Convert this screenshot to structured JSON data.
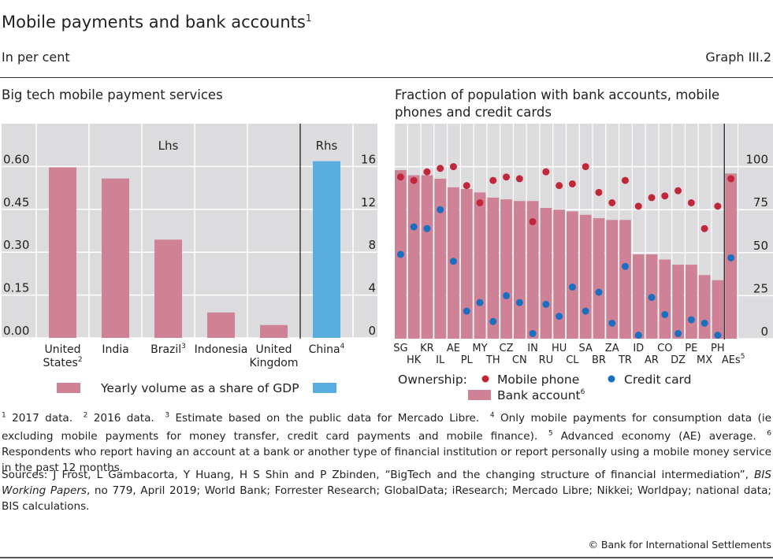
{
  "header": {
    "title": "Mobile payments and bank accounts",
    "title_sup": "1",
    "subtitle": "In per cent",
    "graph_id": "Graph III.2"
  },
  "colors": {
    "panel_bg": "#dcdcde",
    "pink": "#cf8196",
    "light_blue": "#5aade0",
    "red_dot": "#c0283a",
    "blue_dot": "#1a6fc0"
  },
  "chart_data": [
    {
      "type": "bar",
      "title": "Big tech mobile payment services",
      "axis_labels": {
        "left": "Lhs",
        "right": "Rhs"
      },
      "categories": [
        {
          "label": "United",
          "label2": "States",
          "sup": "2",
          "axis": "lhs"
        },
        {
          "label": "India",
          "label2": "",
          "sup": "",
          "axis": "lhs"
        },
        {
          "label": "Brazil",
          "label2": "",
          "sup": "3",
          "axis": "lhs"
        },
        {
          "label": "Indonesia",
          "label2": "",
          "sup": "",
          "axis": "lhs"
        },
        {
          "label": "United",
          "label2": "Kingdom",
          "sup": "",
          "axis": "lhs"
        },
        {
          "label": "China",
          "label2": "",
          "sup": "4",
          "axis": "rhs"
        }
      ],
      "values": [
        0.597,
        0.558,
        0.344,
        0.089,
        0.045,
        16.5
      ],
      "lhs_ticks": [
        "0.00",
        "0.15",
        "0.30",
        "0.45",
        "0.60"
      ],
      "rhs_ticks": [
        "0",
        "4",
        "8",
        "12",
        "16"
      ],
      "lhs_ylim": [
        0,
        0.75
      ],
      "rhs_ylim": [
        0,
        20
      ],
      "grid": true,
      "legend": {
        "label": "Yearly volume as a share of GDP",
        "position": "bottom"
      }
    },
    {
      "type": "bar+scatter",
      "title": "Fraction of population with bank accounts, mobile phones and credit cards",
      "categories": [
        "SG",
        "HK",
        "KR",
        "IL",
        "AE",
        "PL",
        "MY",
        "TH",
        "CZ",
        "CN",
        "IN",
        "RU",
        "HU",
        "CL",
        "SA",
        "BR",
        "ZA",
        "TR",
        "ID",
        "AR",
        "CO",
        "DZ",
        "PE",
        "MX",
        "PH",
        "AEs"
      ],
      "last_category_sup": "5",
      "series": [
        {
          "name": "Bank account",
          "type": "bar",
          "values": [
            98,
            95,
            95,
            93,
            88,
            87,
            85,
            82,
            81,
            80,
            80,
            76,
            75,
            74,
            72,
            70,
            69,
            69,
            49,
            49,
            46,
            43,
            43,
            37,
            34,
            96
          ]
        },
        {
          "name": "Mobile phone",
          "type": "scatter",
          "values": [
            94,
            92,
            97,
            99,
            100,
            89,
            79,
            92,
            94,
            93,
            68,
            97,
            89,
            90,
            100,
            85,
            79,
            92,
            77,
            82,
            83,
            86,
            79,
            64,
            77,
            93
          ]
        },
        {
          "name": "Credit card",
          "type": "scatter",
          "values": [
            49,
            65,
            64,
            75,
            45,
            16,
            21,
            10,
            25,
            21,
            3,
            20,
            13,
            30,
            16,
            27,
            9,
            42,
            2,
            24,
            14,
            3,
            11,
            9,
            2,
            47
          ]
        }
      ],
      "ticks": [
        "0",
        "25",
        "50",
        "75",
        "100"
      ],
      "ylim": [
        0,
        125
      ],
      "grid": true,
      "legend": {
        "prefix": "Ownership:",
        "mobile": "Mobile phone",
        "credit": "Credit card",
        "bank": "Bank account",
        "bank_sup": "6",
        "position": "bottom"
      }
    }
  ],
  "footnotes": [
    {
      "num": "1",
      "text": "2017 data."
    },
    {
      "num": "2",
      "text": "2016 data."
    },
    {
      "num": "3",
      "text": "Estimate based on the public data for Mercado Libre."
    },
    {
      "num": "4",
      "text": "Only mobile payments for consumption data (ie excluding mobile payments for money transfer, credit card payments and mobile finance)."
    },
    {
      "num": "5",
      "text": "Advanced economy (AE) average."
    },
    {
      "num": "6",
      "text": "Respondents who report having an account at a bank or another type of financial institution or report personally using a mobile money service in the past 12 months."
    }
  ],
  "sources": {
    "pre": "Sources: J Frost, L Gambacorta, Y Huang, H S Shin and P Zbinden, “BigTech and the changing structure of financial intermediation”, ",
    "italic": "BIS Working Papers",
    "post": ", no 779, April 2019; World Bank; Forrester Research; GlobalData; iResearch; Mercado Libre; Nikkei; Worldpay; national data; BIS calculations."
  },
  "copyright": "© Bank for International Settlements"
}
